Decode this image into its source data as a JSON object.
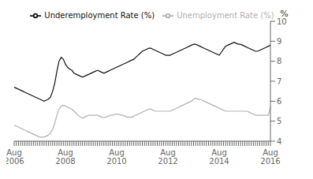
{
  "chart_data": {
    "type": "line",
    "y_label": "%",
    "categories": [
      "Aug\n2006",
      null,
      null,
      null,
      null,
      null,
      null,
      null,
      null,
      null,
      null,
      null,
      null,
      null,
      null,
      null,
      null,
      null,
      null,
      null,
      null,
      null,
      null,
      null,
      "Aug\n2008",
      null,
      null,
      null,
      null,
      null,
      null,
      null,
      null,
      null,
      null,
      null,
      null,
      null,
      null,
      null,
      null,
      null,
      null,
      null,
      null,
      null,
      null,
      null,
      "Aug\n2010",
      null,
      null,
      null,
      null,
      null,
      null,
      null,
      null,
      null,
      null,
      null,
      null,
      null,
      null,
      null,
      null,
      null,
      null,
      null,
      null,
      null,
      null,
      null,
      "Aug\n2012",
      null,
      null,
      null,
      null,
      null,
      null,
      null,
      null,
      null,
      null,
      null,
      null,
      null,
      null,
      null,
      null,
      null,
      null,
      null,
      null,
      null,
      null,
      null,
      "Aug\n2014",
      null,
      null,
      null,
      null,
      null,
      null,
      null,
      null,
      null,
      null,
      null,
      null,
      null,
      null,
      null,
      null,
      null,
      null,
      null,
      null,
      null,
      null,
      null,
      "Aug\n2016"
    ],
    "series": [
      {
        "name": "Underemployment Rate (%)",
        "color": "#111111",
        "values": [
          6.7,
          6.65,
          6.6,
          6.55,
          6.5,
          6.45,
          6.4,
          6.35,
          6.3,
          6.25,
          6.2,
          6.15,
          6.1,
          6.05,
          6.0,
          6.05,
          6.1,
          6.2,
          6.5,
          6.9,
          7.5,
          8.0,
          8.2,
          8.1,
          7.85,
          7.7,
          7.6,
          7.55,
          7.4,
          7.35,
          7.3,
          7.25,
          7.2,
          7.25,
          7.3,
          7.35,
          7.4,
          7.45,
          7.5,
          7.55,
          7.5,
          7.45,
          7.4,
          7.45,
          7.5,
          7.55,
          7.6,
          7.65,
          7.7,
          7.75,
          7.8,
          7.85,
          7.9,
          7.95,
          8.0,
          8.05,
          8.1,
          8.2,
          8.3,
          8.4,
          8.5,
          8.55,
          8.6,
          8.65,
          8.65,
          8.6,
          8.55,
          8.5,
          8.45,
          8.4,
          8.35,
          8.3,
          8.3,
          8.3,
          8.35,
          8.4,
          8.45,
          8.5,
          8.55,
          8.6,
          8.65,
          8.7,
          8.75,
          8.8,
          8.85,
          8.85,
          8.8,
          8.75,
          8.7,
          8.65,
          8.6,
          8.55,
          8.5,
          8.45,
          8.4,
          8.35,
          8.3,
          8.45,
          8.6,
          8.75,
          8.8,
          8.85,
          8.9,
          8.95,
          8.9,
          8.85,
          8.85,
          8.8,
          8.75,
          8.7,
          8.65,
          8.6,
          8.55,
          8.5,
          8.5,
          8.55,
          8.6,
          8.65,
          8.7,
          8.75,
          8.8
        ]
      },
      {
        "name": "Unemployment Rate (%)",
        "color": "#b0b0b0",
        "values": [
          4.8,
          4.75,
          4.7,
          4.65,
          4.6,
          4.55,
          4.5,
          4.45,
          4.4,
          4.35,
          4.3,
          4.25,
          4.2,
          4.2,
          4.2,
          4.25,
          4.3,
          4.4,
          4.6,
          4.9,
          5.3,
          5.6,
          5.75,
          5.8,
          5.75,
          5.7,
          5.65,
          5.6,
          5.5,
          5.4,
          5.3,
          5.2,
          5.15,
          5.2,
          5.25,
          5.3,
          5.3,
          5.3,
          5.3,
          5.3,
          5.25,
          5.2,
          5.2,
          5.2,
          5.25,
          5.3,
          5.3,
          5.35,
          5.35,
          5.35,
          5.3,
          5.3,
          5.25,
          5.2,
          5.2,
          5.2,
          5.25,
          5.3,
          5.35,
          5.4,
          5.45,
          5.5,
          5.55,
          5.6,
          5.6,
          5.55,
          5.5,
          5.5,
          5.5,
          5.5,
          5.5,
          5.5,
          5.5,
          5.5,
          5.55,
          5.6,
          5.65,
          5.7,
          5.75,
          5.8,
          5.85,
          5.9,
          5.95,
          6.0,
          6.1,
          6.15,
          6.1,
          6.1,
          6.05,
          6.0,
          5.95,
          5.9,
          5.85,
          5.8,
          5.75,
          5.7,
          5.65,
          5.6,
          5.55,
          5.5,
          5.5,
          5.5,
          5.5,
          5.5,
          5.5,
          5.5,
          5.5,
          5.5,
          5.5,
          5.5,
          5.45,
          5.4,
          5.35,
          5.3,
          5.3,
          5.3,
          5.3,
          5.3,
          5.3,
          5.3,
          5.7
        ]
      }
    ],
    "ylim": [
      4,
      10
    ],
    "yticks": [
      4,
      5,
      6,
      7,
      8,
      9,
      10
    ],
    "grid": false,
    "legend": "top"
  }
}
